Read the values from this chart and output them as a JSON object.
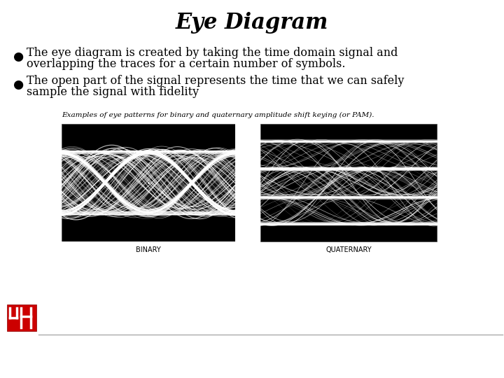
{
  "title": "Eye Diagram",
  "title_fontsize": 22,
  "title_style": "italic",
  "title_weight": "bold",
  "title_font": "serif",
  "bullet1_line1": "The eye diagram is created by taking the time domain signal and",
  "bullet1_line2": "overlapping the traces for a certain number of symbols.",
  "bullet2_line1": "The open part of the signal represents the time that we can safely",
  "bullet2_line2": "sample the signal with fidelity",
  "caption": "Examples of eye patterns for binary and quaternary amplitude shift keying (or PAM).",
  "label_binary": "BINARY",
  "label_quaternary": "QUATERNARY",
  "bg_color": "#ffffff",
  "text_color": "#000000",
  "bullet_fontsize": 11.5,
  "caption_fontsize": 7.5,
  "label_fontsize": 7,
  "footer_line_color": "#aaaaaa"
}
